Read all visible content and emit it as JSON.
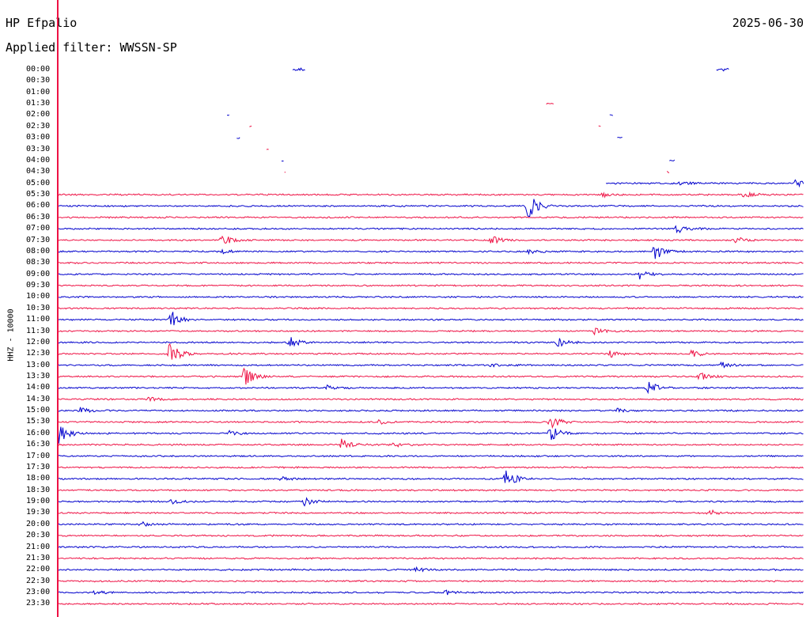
{
  "header": {
    "station": "HP Efpalio",
    "filter": "Applied filter: WWSSN-SP",
    "date": "2025-06-30",
    "channel": "HHZ - 10000"
  },
  "colors": {
    "trace_a": "#0000cc",
    "trace_b": "#ee1144",
    "marker": "#ee1144"
  },
  "chart_data": {
    "type": "line",
    "title": "HP Efpalio",
    "subtitle": "Applied filter: WWSSN-SP",
    "ylabel": "HHZ - 10000",
    "rows": [
      "00:00",
      "00:30",
      "01:00",
      "01:30",
      "02:00",
      "02:30",
      "03:00",
      "03:30",
      "04:00",
      "04:30",
      "05:00",
      "05:30",
      "06:00",
      "06:30",
      "07:00",
      "07:30",
      "08:00",
      "08:30",
      "09:00",
      "09:30",
      "10:00",
      "10:30",
      "11:00",
      "11:30",
      "12:00",
      "12:30",
      "13:00",
      "13:30",
      "14:00",
      "14:30",
      "15:00",
      "15:30",
      "16:00",
      "16:30",
      "17:00",
      "17:30",
      "18:00",
      "18:30",
      "19:00",
      "19:30",
      "20:00",
      "20:30",
      "21:00",
      "21:30",
      "22:00",
      "22:30",
      "23:00",
      "23:30"
    ],
    "minutes_per_row": 30,
    "trace_start": [
      0,
      0,
      0,
      0,
      0,
      0,
      0,
      0,
      0,
      0,
      0.735,
      0,
      0,
      0,
      0,
      0,
      0,
      0,
      0,
      0,
      0,
      0,
      0,
      0,
      0,
      0,
      0,
      0,
      0,
      0,
      0,
      0,
      0,
      0,
      0,
      0,
      0,
      0,
      0,
      0,
      0,
      0,
      0,
      0,
      0,
      0,
      0,
      0
    ],
    "trace_fragments": [
      [
        [
          0.315,
          0.332
        ],
        [
          0.883,
          0.9
        ]
      ],
      [],
      [],
      [
        [
          0.655,
          0.665
        ]
      ],
      [
        [
          0.227,
          0.23
        ],
        [
          0.74,
          0.745
        ]
      ],
      [
        [
          0.257,
          0.26
        ],
        [
          0.725,
          0.728
        ]
      ],
      [
        [
          0.24,
          0.245
        ],
        [
          0.75,
          0.758
        ]
      ],
      [
        [
          0.28,
          0.283
        ]
      ],
      [
        [
          0.3,
          0.303
        ],
        [
          0.82,
          0.827
        ]
      ],
      [
        [
          0.304,
          0.306
        ],
        [
          0.817,
          0.82
        ]
      ],
      [],
      [],
      [],
      [],
      [],
      [],
      [],
      [],
      [],
      [],
      [],
      [],
      [],
      [],
      [],
      [],
      [],
      [],
      [],
      [],
      [],
      [],
      [],
      [],
      [],
      [],
      [],
      [],
      [],
      [],
      [],
      [],
      [],
      [],
      [],
      [],
      [],
      []
    ],
    "events": [
      {
        "row": 0,
        "x": 0.32,
        "amp": 2
      },
      {
        "row": 0,
        "x": 0.89,
        "amp": 1.5
      },
      {
        "row": 10,
        "x": 0.835,
        "amp": 3
      },
      {
        "row": 10,
        "x": 0.99,
        "amp": 7
      },
      {
        "row": 11,
        "x": 0.73,
        "amp": 3
      },
      {
        "row": 11,
        "x": 0.92,
        "amp": 4
      },
      {
        "row": 12,
        "x": 0.63,
        "amp": 18
      },
      {
        "row": 14,
        "x": 0.83,
        "amp": 6
      },
      {
        "row": 15,
        "x": 0.22,
        "amp": 8
      },
      {
        "row": 15,
        "x": 0.58,
        "amp": 6
      },
      {
        "row": 15,
        "x": 0.91,
        "amp": 4
      },
      {
        "row": 16,
        "x": 0.8,
        "amp": 12
      },
      {
        "row": 16,
        "x": 0.22,
        "amp": 3
      },
      {
        "row": 16,
        "x": 0.63,
        "amp": 3
      },
      {
        "row": 18,
        "x": 0.78,
        "amp": 6
      },
      {
        "row": 22,
        "x": 0.15,
        "amp": 14
      },
      {
        "row": 23,
        "x": 0.72,
        "amp": 4
      },
      {
        "row": 24,
        "x": 0.31,
        "amp": 8
      },
      {
        "row": 24,
        "x": 0.67,
        "amp": 6
      },
      {
        "row": 25,
        "x": 0.15,
        "amp": 16
      },
      {
        "row": 25,
        "x": 0.74,
        "amp": 5
      },
      {
        "row": 25,
        "x": 0.85,
        "amp": 5
      },
      {
        "row": 26,
        "x": 0.89,
        "amp": 4
      },
      {
        "row": 26,
        "x": 0.58,
        "amp": 3
      },
      {
        "row": 27,
        "x": 0.25,
        "amp": 14
      },
      {
        "row": 27,
        "x": 0.86,
        "amp": 6
      },
      {
        "row": 28,
        "x": 0.36,
        "amp": 3
      },
      {
        "row": 28,
        "x": 0.79,
        "amp": 10
      },
      {
        "row": 29,
        "x": 0.12,
        "amp": 3
      },
      {
        "row": 30,
        "x": 0.03,
        "amp": 4
      },
      {
        "row": 30,
        "x": 0.75,
        "amp": 3
      },
      {
        "row": 31,
        "x": 0.66,
        "amp": 10
      },
      {
        "row": 31,
        "x": 0.43,
        "amp": 3
      },
      {
        "row": 32,
        "x": 0.0,
        "amp": 18
      },
      {
        "row": 32,
        "x": 0.66,
        "amp": 12
      },
      {
        "row": 32,
        "x": 0.23,
        "amp": 3
      },
      {
        "row": 33,
        "x": 0.38,
        "amp": 8
      },
      {
        "row": 33,
        "x": 0.45,
        "amp": 4
      },
      {
        "row": 36,
        "x": 0.6,
        "amp": 14
      },
      {
        "row": 36,
        "x": 0.3,
        "amp": 3
      },
      {
        "row": 38,
        "x": 0.33,
        "amp": 5
      },
      {
        "row": 38,
        "x": 0.15,
        "amp": 4
      },
      {
        "row": 39,
        "x": 0.87,
        "amp": 6
      },
      {
        "row": 40,
        "x": 0.11,
        "amp": 4
      },
      {
        "row": 44,
        "x": 0.48,
        "amp": 3
      },
      {
        "row": 46,
        "x": 0.05,
        "amp": 3
      },
      {
        "row": 46,
        "x": 0.52,
        "amp": 3
      }
    ],
    "marker_minute": 0,
    "grid": false,
    "legend": "none"
  }
}
